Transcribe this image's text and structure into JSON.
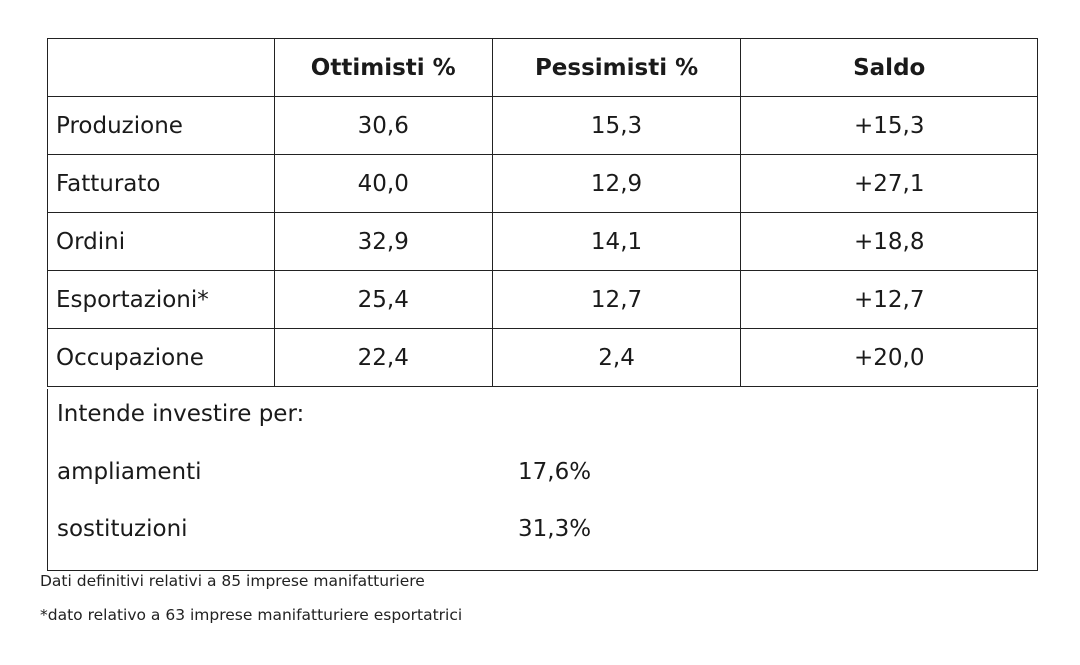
{
  "table": {
    "headers": [
      "",
      "Ottimisti %",
      "Pessimisti %",
      "Saldo"
    ],
    "rows": [
      {
        "label": "Produzione",
        "ottimisti": "30,6",
        "pessimisti": "15,3",
        "saldo": "+15,3"
      },
      {
        "label": "Fatturato",
        "ottimisti": "40,0",
        "pessimisti": "12,9",
        "saldo": "+27,1"
      },
      {
        "label": "Ordini",
        "ottimisti": "32,9",
        "pessimisti": "14,1",
        "saldo": "+18,8"
      },
      {
        "label": "Esportazioni*",
        "ottimisti": "25,4",
        "pessimisti": "12,7",
        "saldo": "+12,7"
      },
      {
        "label": "Occupazione",
        "ottimisti": "22,4",
        "pessimisti": "2,4",
        "saldo": "+20,0"
      }
    ]
  },
  "investment": {
    "heading": "Intende investire per:",
    "items": [
      {
        "label": "ampliamenti",
        "value": "17,6%"
      },
      {
        "label": "sostituzioni",
        "value": "31,3%"
      }
    ]
  },
  "footnotes": [
    "Dati definitivi relativi a 85 imprese manifatturiere",
    "*dato relativo a 63 imprese manifatturiere esportatrici"
  ]
}
